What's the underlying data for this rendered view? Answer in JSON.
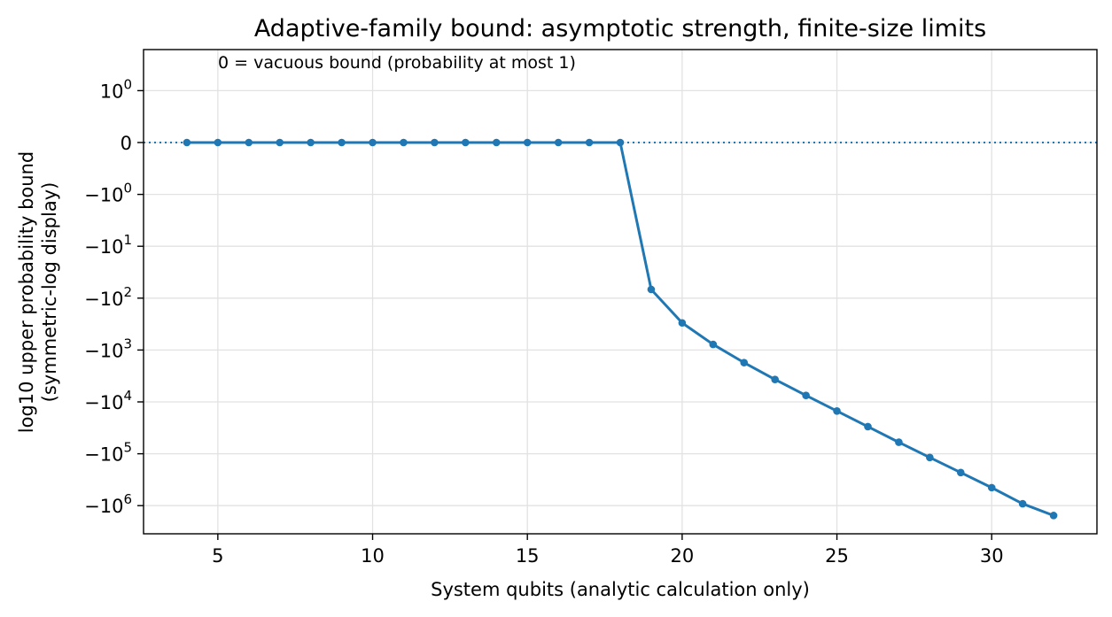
{
  "chart_data": {
    "type": "line",
    "title": "Adaptive-family bound: asymptotic strength, finite-size limits",
    "xlabel": "System qubits (analytic calculation only)",
    "ylabel_line1": "log10 upper probability bound",
    "ylabel_line2": "(symmetric-log display)",
    "annotation": "0 = vacuous bound (probability at most 1)",
    "xscale": "linear",
    "yscale": "symlog",
    "xlim": [
      2.6,
      33.4
    ],
    "x_ticks": [
      5,
      10,
      15,
      20,
      25,
      30
    ],
    "x_tick_labels": [
      "5",
      "10",
      "15",
      "20",
      "25",
      "30"
    ],
    "y_ticks": [
      1,
      0,
      -1,
      -10,
      -100,
      -1000,
      -10000,
      -100000,
      -1000000
    ],
    "y_tick_labels": [
      {
        "base": "10",
        "exp": "0"
      },
      {
        "base": "0",
        "exp": ""
      },
      {
        "base": "−10",
        "exp": "0"
      },
      {
        "base": "−10",
        "exp": "1"
      },
      {
        "base": "−10",
        "exp": "2"
      },
      {
        "base": "−10",
        "exp": "3"
      },
      {
        "base": "−10",
        "exp": "4"
      },
      {
        "base": "−10",
        "exp": "5"
      },
      {
        "base": "−10",
        "exp": "6"
      }
    ],
    "grid": true,
    "reference_line_y": 0,
    "series": [
      {
        "color": "#1f77b4",
        "x": [
          4,
          5,
          6,
          7,
          8,
          9,
          10,
          11,
          12,
          13,
          14,
          15,
          16,
          17,
          18,
          19,
          20,
          21,
          22,
          23,
          24,
          25,
          26,
          27,
          28,
          29,
          30,
          31,
          32
        ],
        "y": [
          0,
          0,
          0,
          0,
          0,
          0,
          0,
          0,
          0,
          0,
          0,
          0,
          0,
          0,
          0,
          -68,
          -300,
          -780,
          -1750,
          -3700,
          -7500,
          -15000,
          -30000,
          -60000,
          -118000,
          -230000,
          -450000,
          -920000,
          -1550000
        ]
      }
    ]
  }
}
